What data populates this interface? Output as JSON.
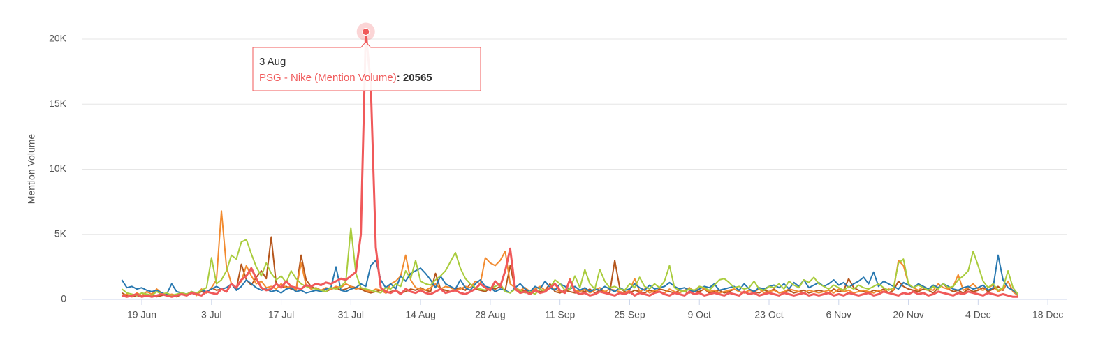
{
  "chart_data": {
    "type": "line",
    "y_label": "Mention Volume",
    "x": [
      "15 Jun",
      "16 Jun",
      "17 Jun",
      "18 Jun",
      "19 Jun",
      "20 Jun",
      "21 Jun",
      "22 Jun",
      "23 Jun",
      "24 Jun",
      "25 Jun",
      "26 Jun",
      "27 Jun",
      "28 Jun",
      "29 Jun",
      "30 Jun",
      "1 Jul",
      "2 Jul",
      "3 Jul",
      "4 Jul",
      "5 Jul",
      "6 Jul",
      "7 Jul",
      "8 Jul",
      "9 Jul",
      "10 Jul",
      "11 Jul",
      "12 Jul",
      "13 Jul",
      "14 Jul",
      "15 Jul",
      "16 Jul",
      "17 Jul",
      "18 Jul",
      "19 Jul",
      "20 Jul",
      "21 Jul",
      "22 Jul",
      "23 Jul",
      "24 Jul",
      "25 Jul",
      "26 Jul",
      "27 Jul",
      "28 Jul",
      "29 Jul",
      "30 Jul",
      "31 Jul",
      "1 Aug",
      "2 Aug",
      "3 Aug",
      "4 Aug",
      "5 Aug",
      "6 Aug",
      "7 Aug",
      "8 Aug",
      "9 Aug",
      "10 Aug",
      "11 Aug",
      "12 Aug",
      "13 Aug",
      "14 Aug",
      "15 Aug",
      "16 Aug",
      "17 Aug",
      "18 Aug",
      "19 Aug",
      "20 Aug",
      "21 Aug",
      "22 Aug",
      "23 Aug",
      "24 Aug",
      "25 Aug",
      "26 Aug",
      "27 Aug",
      "28 Aug",
      "29 Aug",
      "30 Aug",
      "31 Aug",
      "1 Sep",
      "2 Sep",
      "3 Sep",
      "4 Sep",
      "5 Sep",
      "6 Sep",
      "7 Sep",
      "8 Sep",
      "9 Sep",
      "10 Sep",
      "11 Sep",
      "12 Sep",
      "13 Sep",
      "14 Sep",
      "15 Sep",
      "16 Sep",
      "17 Sep",
      "18 Sep",
      "19 Sep",
      "20 Sep",
      "21 Sep",
      "22 Sep",
      "23 Sep",
      "24 Sep",
      "25 Sep",
      "26 Sep",
      "27 Sep",
      "28 Sep",
      "29 Sep",
      "30 Sep",
      "1 Oct",
      "2 Oct",
      "3 Oct",
      "4 Oct",
      "5 Oct",
      "6 Oct",
      "7 Oct",
      "8 Oct",
      "9 Oct",
      "10 Oct",
      "11 Oct",
      "12 Oct",
      "13 Oct",
      "14 Oct",
      "15 Oct",
      "16 Oct",
      "17 Oct",
      "18 Oct",
      "19 Oct",
      "20 Oct",
      "21 Oct",
      "22 Oct",
      "23 Oct",
      "24 Oct",
      "25 Oct",
      "26 Oct",
      "27 Oct",
      "28 Oct",
      "29 Oct",
      "30 Oct",
      "31 Oct",
      "1 Nov",
      "2 Nov",
      "3 Nov",
      "4 Nov",
      "5 Nov",
      "6 Nov",
      "7 Nov",
      "8 Nov",
      "9 Nov",
      "10 Nov",
      "11 Nov",
      "12 Nov",
      "13 Nov",
      "14 Nov",
      "15 Nov",
      "16 Nov",
      "17 Nov",
      "18 Nov",
      "19 Nov",
      "20 Nov",
      "21 Nov",
      "22 Nov",
      "23 Nov",
      "24 Nov",
      "25 Nov",
      "26 Nov",
      "27 Nov",
      "28 Nov",
      "29 Nov",
      "30 Nov",
      "1 Dec",
      "2 Dec",
      "3 Dec",
      "4 Dec",
      "5 Dec",
      "6 Dec",
      "7 Dec",
      "8 Dec",
      "9 Dec",
      "10 Dec",
      "11 Dec",
      "12 Dec",
      "13 Dec",
      "14 Dec",
      "15 Dec",
      "16 Dec",
      "17 Dec",
      "18 Dec"
    ],
    "xticks": [
      "19 Jun",
      "3 Jul",
      "17 Jul",
      "31 Jul",
      "14 Aug",
      "28 Aug",
      "11 Sep",
      "25 Sep",
      "9 Oct",
      "23 Oct",
      "6 Nov",
      "20 Nov",
      "4 Dec",
      "18 Dec"
    ],
    "ylim": [
      0,
      20000
    ],
    "yticks": [
      0,
      {
        "value": 5000,
        "label": "5K"
      },
      {
        "value": 10000,
        "label": "10K"
      },
      {
        "value": 15000,
        "label": "15K"
      },
      {
        "value": 20000,
        "label": "20K"
      }
    ],
    "grid": true,
    "series": [
      {
        "name": "PSG - Nike (Mention Volume)",
        "color": "#f0595a",
        "values": [
          300,
          200,
          300,
          400,
          200,
          300,
          200,
          300,
          400,
          300,
          200,
          300,
          400,
          300,
          500,
          400,
          300,
          600,
          500,
          400,
          800,
          600,
          1200,
          900,
          1500,
          1800,
          2400,
          1600,
          900,
          700,
          800,
          1200,
          900,
          1400,
          1000,
          900,
          800,
          1100,
          1000,
          1200,
          1100,
          1300,
          1200,
          1400,
          1600,
          1500,
          1800,
          2100,
          5000,
          20565,
          16500,
          4000,
          900,
          600,
          500,
          700,
          400,
          800,
          600,
          500,
          700,
          500,
          400,
          600,
          800,
          500,
          600,
          700,
          500,
          400,
          600,
          800,
          1200,
          900,
          700,
          1400,
          1000,
          2200,
          3900,
          800,
          500,
          600,
          400,
          700,
          500,
          600,
          900,
          1200,
          700,
          500,
          1500,
          600,
          400,
          500,
          300,
          400,
          600,
          500,
          400,
          300,
          500,
          400,
          600,
          300,
          500,
          400,
          300,
          500,
          600,
          400,
          300,
          500,
          400,
          300,
          600,
          400,
          500,
          300,
          400,
          500,
          400,
          300,
          500,
          400,
          300,
          600,
          400,
          500,
          300,
          400,
          500,
          400,
          300,
          500,
          400,
          300,
          400,
          500,
          300,
          400,
          300,
          400,
          500,
          300,
          400,
          300,
          500,
          400,
          300,
          400,
          500,
          300,
          400,
          600,
          500,
          400,
          300,
          500,
          400,
          600,
          400,
          500,
          300,
          400,
          600,
          500,
          400,
          300,
          500,
          400,
          600,
          500,
          400,
          300,
          500,
          400,
          300,
          400,
          300,
          200,
          200,
          null,
          null,
          null,
          null,
          null,
          null
        ]
      },
      {
        "color": "#a9cc3d",
        "values": [
          800,
          500,
          400,
          300,
          500,
          400,
          300,
          600,
          400,
          500,
          300,
          400,
          500,
          400,
          600,
          500,
          700,
          900,
          3200,
          1200,
          1500,
          2200,
          3400,
          3100,
          4400,
          4600,
          3500,
          2500,
          1800,
          2800,
          2000,
          1500,
          1800,
          1300,
          2200,
          1600,
          1200,
          1000,
          900,
          800,
          700,
          600,
          900,
          800,
          1000,
          1400,
          5500,
          2000,
          900,
          800,
          700,
          600,
          500,
          900,
          800,
          1200,
          1000,
          2200,
          1600,
          3000,
          1400,
          1200,
          1100,
          1500,
          1800,
          2200,
          2900,
          3600,
          2400,
          1600,
          1200,
          900,
          800,
          700,
          900,
          1000,
          1200,
          600,
          500,
          800,
          700,
          500,
          600,
          400,
          800,
          600,
          900,
          1500,
          1200,
          700,
          800,
          1800,
          900,
          2300,
          1200,
          800,
          2300,
          1400,
          900,
          1000,
          800,
          700,
          1200,
          900,
          1700,
          1000,
          800,
          1200,
          900,
          1400,
          2600,
          900,
          700,
          600,
          800,
          700,
          1000,
          900,
          700,
          1100,
          1500,
          1600,
          1300,
          900,
          1000,
          800,
          900,
          1400,
          800,
          700,
          1000,
          900,
          1200,
          800,
          1400,
          1100,
          900,
          1500,
          1300,
          1700,
          1200,
          1000,
          800,
          1100,
          900,
          700,
          1000,
          800,
          1100,
          900,
          800,
          1000,
          1200,
          900,
          700,
          900,
          2800,
          3100,
          1200,
          900,
          1100,
          900,
          700,
          1000,
          800,
          1200,
          900,
          1000,
          1500,
          1800,
          2200,
          3700,
          2600,
          1400,
          900,
          1200,
          700,
          900,
          2200,
          900,
          400,
          null,
          null,
          null,
          null,
          null,
          null
        ]
      },
      {
        "color": "#2878b0",
        "values": [
          1500,
          900,
          1000,
          800,
          900,
          700,
          600,
          700,
          500,
          400,
          1200,
          600,
          500,
          400,
          600,
          500,
          700,
          600,
          800,
          1000,
          800,
          900,
          1200,
          700,
          1000,
          1500,
          1200,
          900,
          700,
          800,
          600,
          700,
          500,
          800,
          900,
          600,
          700,
          500,
          600,
          700,
          600,
          800,
          900,
          2500,
          700,
          600,
          800,
          900,
          1200,
          1000,
          2600,
          3000,
          1500,
          900,
          1200,
          800,
          1800,
          1400,
          2000,
          2200,
          2400,
          2000,
          1500,
          900,
          1800,
          1200,
          1000,
          800,
          1500,
          900,
          700,
          1200,
          1500,
          1000,
          900,
          600,
          800,
          700,
          500,
          900,
          1200,
          800,
          600,
          1000,
          800,
          1400,
          900,
          700,
          1200,
          1000,
          800,
          1000,
          700,
          900,
          600,
          800,
          700,
          1000,
          800,
          600,
          900,
          700,
          800,
          1200,
          900,
          700,
          1100,
          800,
          900,
          1000,
          1300,
          1000,
          800,
          900,
          700,
          600,
          800,
          1000,
          900,
          1200,
          700,
          800,
          900,
          1000,
          700,
          1200,
          800,
          600,
          900,
          800,
          1000,
          1100,
          900,
          1200,
          800,
          1300,
          1000,
          1500,
          900,
          1100,
          1300,
          1000,
          1200,
          1500,
          1100,
          1300,
          900,
          1200,
          1400,
          1700,
          1200,
          2100,
          1000,
          1400,
          1200,
          1000,
          800,
          1300,
          1100,
          900,
          1200,
          1000,
          800,
          1100,
          900,
          1200,
          1000,
          800,
          700,
          900,
          1000,
          800,
          900,
          1100,
          700,
          900,
          3400,
          1500,
          900,
          700,
          400,
          null,
          null,
          null,
          null,
          null,
          null
        ]
      },
      {
        "color": "#f28b30",
        "values": [
          300,
          400,
          200,
          500,
          300,
          600,
          400,
          800,
          500,
          300,
          400,
          300,
          500,
          400,
          600,
          300,
          800,
          500,
          900,
          1500,
          6800,
          2500,
          1200,
          900,
          1400,
          2600,
          1800,
          1200,
          1400,
          900,
          1000,
          800,
          1200,
          900,
          1000,
          700,
          2800,
          1100,
          800,
          900,
          700,
          900,
          800,
          1000,
          900,
          1200,
          1000,
          800,
          900,
          700,
          600,
          800,
          700,
          500,
          1200,
          1400,
          1800,
          3400,
          1500,
          900,
          800,
          700,
          900,
          1200,
          800,
          1000,
          900,
          700,
          800,
          1000,
          900,
          1400,
          1200,
          3200,
          2800,
          2600,
          3000,
          3700,
          1200,
          900,
          700,
          900,
          600,
          800,
          1000,
          700,
          900,
          800,
          600,
          500,
          1600,
          700,
          600,
          800,
          500,
          700,
          900,
          600,
          800,
          700,
          600,
          500,
          700,
          1600,
          600,
          800,
          500,
          700,
          600,
          500,
          800,
          600,
          500,
          700,
          900,
          600,
          1000,
          800,
          600,
          700,
          500,
          600,
          700,
          800,
          600,
          500,
          700,
          600,
          800,
          500,
          600,
          700,
          500,
          600,
          800,
          700,
          600,
          500,
          700,
          600,
          500,
          600,
          700,
          500,
          800,
          600,
          700,
          500,
          600,
          700,
          600,
          500,
          700,
          600,
          800,
          700,
          3000,
          2600,
          1200,
          900,
          700,
          1000,
          800,
          700,
          1200,
          900,
          800,
          1000,
          1900,
          700,
          900,
          1200,
          800,
          700,
          900,
          1100,
          600,
          800,
          1400,
          600,
          300,
          null,
          null,
          null,
          null,
          null,
          null
        ]
      },
      {
        "color": "#b5561c",
        "values": [
          500,
          300,
          200,
          300,
          200,
          400,
          300,
          200,
          300,
          400,
          300,
          200,
          400,
          300,
          500,
          400,
          600,
          500,
          900,
          700,
          800,
          600,
          1200,
          800,
          2700,
          1500,
          1100,
          1700,
          2200,
          1600,
          4800,
          1200,
          900,
          1000,
          800,
          700,
          3400,
          1500,
          1000,
          800,
          700,
          600,
          800,
          900,
          700,
          800,
          1000,
          900,
          800,
          600,
          500,
          600,
          700,
          500,
          600,
          700,
          500,
          600,
          800,
          700,
          900,
          700,
          600,
          2000,
          800,
          700,
          600,
          800,
          900,
          700,
          1200,
          800,
          700,
          600,
          900,
          800,
          1000,
          700,
          2600,
          800,
          600,
          700,
          500,
          800,
          600,
          700,
          1200,
          600,
          500,
          700,
          600,
          500,
          700,
          600,
          800,
          500,
          700,
          600,
          500,
          3000,
          900,
          600,
          500,
          700,
          600,
          500,
          700,
          600,
          800,
          700,
          600,
          500,
          700,
          600,
          500,
          700,
          600,
          800,
          500,
          600,
          700,
          500,
          600,
          800,
          600,
          500,
          700,
          600,
          500,
          700,
          600,
          800,
          500,
          600,
          700,
          500,
          600,
          700,
          500,
          600,
          700,
          600,
          500,
          800,
          600,
          700,
          1600,
          900,
          700,
          600,
          500,
          700,
          600,
          800,
          500,
          700,
          1400,
          1000,
          800,
          700,
          600,
          800,
          700,
          500,
          900,
          1200,
          800,
          600,
          700,
          500,
          800,
          600,
          700,
          900,
          600,
          800,
          1000,
          700,
          1400,
          600,
          300,
          null,
          null,
          null,
          null,
          null,
          null
        ]
      }
    ]
  }
}
